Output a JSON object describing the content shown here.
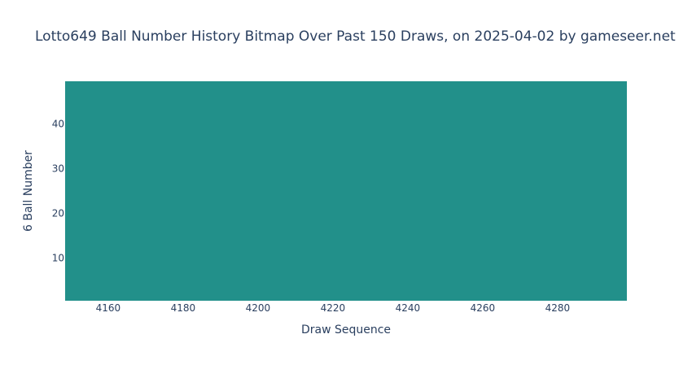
{
  "chart_data": {
    "type": "heatmap",
    "title": "Lotto649 Ball Number History Bitmap Over Past 150 Draws, on 2025-04-02 by gameseer.net",
    "xlabel": "Draw Sequence",
    "ylabel": "6 Ball Number",
    "xlim": [
      4148.5,
      4298.5
    ],
    "ylim": [
      0.5,
      49.5
    ],
    "x_ticks": [
      4160,
      4180,
      4200,
      4220,
      4240,
      4260,
      4280
    ],
    "y_ticks": [
      10,
      20,
      30,
      40
    ],
    "fill_color": "#22908a",
    "grid": false,
    "legend": "none"
  }
}
